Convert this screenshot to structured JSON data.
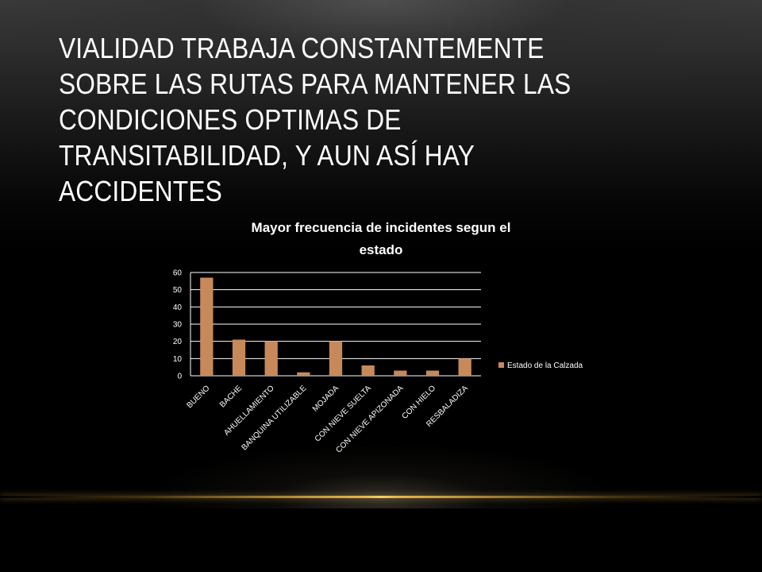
{
  "slide": {
    "title": "VIALIDAD TRABAJA CONSTANTEMENTE SOBRE LAS RUTAS PARA MANTENER LAS CONDICIONES OPTIMAS DE TRANSITABILIDAD, Y AUN ASÍ HAY ACCIDENTES"
  },
  "colors": {
    "bar": "#c8895a",
    "gridline": "#ffffff",
    "text": "#ffffff",
    "accent_line": "#e8b54d"
  },
  "chart_data": {
    "type": "bar",
    "title": "Mayor frecuencia de incidentes segun el estado",
    "title_lines": [
      "Mayor frecuencia de incidentes segun el",
      "estado"
    ],
    "categories": [
      "BUENO",
      "BACHE",
      "AHUELLAMIENTO",
      "BANQUINA UTILIZABLE",
      "MOJADA",
      "CON NIEVE SUELTA",
      "CON NIEVE APIZONADA",
      "CON HIELO",
      "RESBALADIZA"
    ],
    "series": [
      {
        "name": "Estado de la Calzada",
        "values": [
          57,
          21,
          20,
          2,
          20,
          6,
          3,
          3,
          10
        ]
      }
    ],
    "yticks": [
      "0",
      "10",
      "20",
      "30",
      "40",
      "50",
      "60"
    ],
    "ylim": [
      0,
      60
    ],
    "xlabel": "",
    "ylabel": "",
    "grid": true,
    "legend_position": "right"
  }
}
